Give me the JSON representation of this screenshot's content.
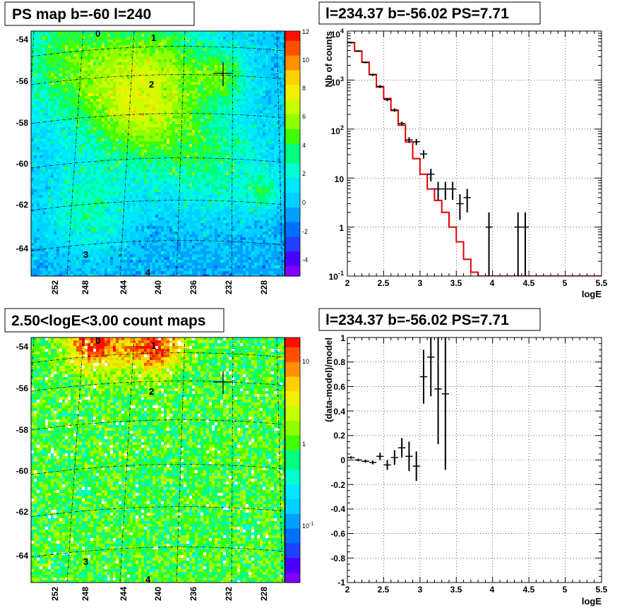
{
  "colors": {
    "model_line": "#e00000",
    "data_points": "#000000",
    "grid": "#000000",
    "frame": "#000000"
  },
  "chart_data": [
    {
      "id": "ps_map",
      "type": "heatmap",
      "title": "PS map b=-60 l=240",
      "xlabel": "",
      "ylabel": "",
      "x_ticks": [
        "252",
        "248",
        "244",
        "240",
        "236",
        "232",
        "228"
      ],
      "y_ticks": [
        "-54",
        "-56",
        "-58",
        "-60",
        "-62",
        "-64"
      ],
      "colorbar_ticks": [
        "12",
        "10",
        "8",
        "6",
        "4",
        "2",
        "0",
        "-2",
        "-4"
      ],
      "zlim": [
        -5,
        12
      ],
      "source_labels": [
        "0",
        "1",
        "2",
        "3",
        "4"
      ],
      "marker": "cross",
      "grid": "dashed"
    },
    {
      "id": "spectrum",
      "type": "line",
      "title": "l=234.37 b=-56.02 PS=7.71",
      "xlabel": "logE",
      "ylabel": "Nb of counts",
      "xlim": [
        2,
        5.5
      ],
      "ylim": [
        0.1,
        10000
      ],
      "log_y": true,
      "grid": true,
      "x_ticks": [
        "2",
        "2.5",
        "3",
        "3.5",
        "4",
        "4.5",
        "5",
        "5.5"
      ],
      "y_ticks": [
        "10^-1",
        "1",
        "10",
        "10^2",
        "10^3",
        "10^4"
      ],
      "model_bin_width": 0.1,
      "model_bin_starts": [
        2.0,
        2.1,
        2.2,
        2.3,
        2.4,
        2.5,
        2.6,
        2.7,
        2.8,
        2.9,
        3.0,
        3.1,
        3.2,
        3.3,
        3.4,
        3.5,
        3.6,
        3.7,
        3.8,
        3.9,
        4.0,
        4.1,
        4.2,
        4.3,
        4.4,
        4.5,
        4.6,
        4.7,
        4.8,
        4.9,
        5.0,
        5.1,
        5.2,
        5.3,
        5.4
      ],
      "model_values": [
        5800,
        3900,
        2300,
        1300,
        720,
        420,
        240,
        120,
        55,
        25,
        12,
        6,
        3.5,
        2,
        1,
        0.5,
        0.22,
        0.12,
        0.1,
        0.1,
        0.1,
        0.1,
        0.1,
        0.1,
        0.1,
        0.1,
        0.1,
        0.1,
        0.1,
        0.1,
        0.1,
        0.1,
        0.1,
        0.1,
        0.1
      ],
      "data_points": [
        {
          "x": 2.05,
          "y": 5800,
          "lo": 5600,
          "hi": 6000
        },
        {
          "x": 2.15,
          "y": 3900,
          "lo": 3750,
          "hi": 4050
        },
        {
          "x": 2.25,
          "y": 2300,
          "lo": 2200,
          "hi": 2400
        },
        {
          "x": 2.35,
          "y": 1280,
          "lo": 1210,
          "hi": 1350
        },
        {
          "x": 2.45,
          "y": 740,
          "lo": 690,
          "hi": 790
        },
        {
          "x": 2.55,
          "y": 400,
          "lo": 370,
          "hi": 430
        },
        {
          "x": 2.65,
          "y": 245,
          "lo": 225,
          "hi": 265
        },
        {
          "x": 2.75,
          "y": 130,
          "lo": 118,
          "hi": 142
        },
        {
          "x": 2.85,
          "y": 60,
          "lo": 52,
          "hi": 68
        },
        {
          "x": 2.95,
          "y": 55,
          "lo": 47,
          "hi": 63
        },
        {
          "x": 3.05,
          "y": 31,
          "lo": 25,
          "hi": 37
        },
        {
          "x": 3.15,
          "y": 12,
          "lo": 8.5,
          "hi": 15.5
        },
        {
          "x": 3.25,
          "y": 6,
          "lo": 3.6,
          "hi": 8.4
        },
        {
          "x": 3.35,
          "y": 6,
          "lo": 3.6,
          "hi": 8.4
        },
        {
          "x": 3.45,
          "y": 6,
          "lo": 3.6,
          "hi": 8.4
        },
        {
          "x": 3.55,
          "y": 3,
          "lo": 1.4,
          "hi": 4.7
        },
        {
          "x": 3.65,
          "y": 4,
          "lo": 2.0,
          "hi": 6.0
        },
        {
          "x": 3.95,
          "y": 1,
          "lo": 0.1,
          "hi": 2.0
        },
        {
          "x": 4.35,
          "y": 1,
          "lo": 0.1,
          "hi": 2.0
        },
        {
          "x": 4.45,
          "y": 1,
          "lo": 0.1,
          "hi": 2.0
        }
      ]
    },
    {
      "id": "count_map",
      "type": "heatmap",
      "title": "2.50<logE<3.00 count maps",
      "xlabel": "",
      "ylabel": "",
      "x_ticks": [
        "252",
        "248",
        "244",
        "240",
        "236",
        "232",
        "228"
      ],
      "y_ticks": [
        "-54",
        "-56",
        "-58",
        "-60",
        "-62",
        "-64"
      ],
      "colorbar_ticks": [
        "10",
        "1",
        "10^-1"
      ],
      "log_z": true,
      "source_labels": [
        "0",
        "1",
        "2",
        "3",
        "4"
      ],
      "marker": "cross",
      "grid": "dashed"
    },
    {
      "id": "residuals",
      "type": "scatter",
      "title": "l=234.37 b=-56.02 PS=7.71",
      "xlabel": "logE",
      "ylabel": "(data-model)/model",
      "xlim": [
        2,
        5.5
      ],
      "ylim": [
        -1,
        1
      ],
      "grid": true,
      "x_ticks": [
        "2",
        "2.5",
        "3",
        "3.5",
        "4",
        "4.5",
        "5",
        "5.5"
      ],
      "y_ticks": [
        "-1",
        "-0.8",
        "-0.6",
        "-0.4",
        "-0.2",
        "0",
        "0.2",
        "0.4",
        "0.6",
        "0.8",
        "1"
      ],
      "data_points": [
        {
          "x": 2.05,
          "y": 0.02,
          "err": 0.01
        },
        {
          "x": 2.15,
          "y": 0.0,
          "err": 0.01
        },
        {
          "x": 2.25,
          "y": -0.01,
          "err": 0.012
        },
        {
          "x": 2.35,
          "y": -0.02,
          "err": 0.015
        },
        {
          "x": 2.45,
          "y": 0.03,
          "err": 0.03
        },
        {
          "x": 2.55,
          "y": -0.04,
          "err": 0.04
        },
        {
          "x": 2.65,
          "y": 0.02,
          "err": 0.06
        },
        {
          "x": 2.75,
          "y": 0.1,
          "err": 0.08
        },
        {
          "x": 2.85,
          "y": 0.03,
          "err": 0.12
        },
        {
          "x": 2.95,
          "y": -0.05,
          "err": 0.12
        },
        {
          "x": 3.05,
          "y": 0.68,
          "err": 0.22
        },
        {
          "x": 3.15,
          "y": 0.84,
          "err": 0.32
        },
        {
          "x": 3.25,
          "y": 0.58,
          "err": 0.45
        },
        {
          "x": 3.35,
          "y": 0.54,
          "err": 0.62
        }
      ]
    }
  ]
}
